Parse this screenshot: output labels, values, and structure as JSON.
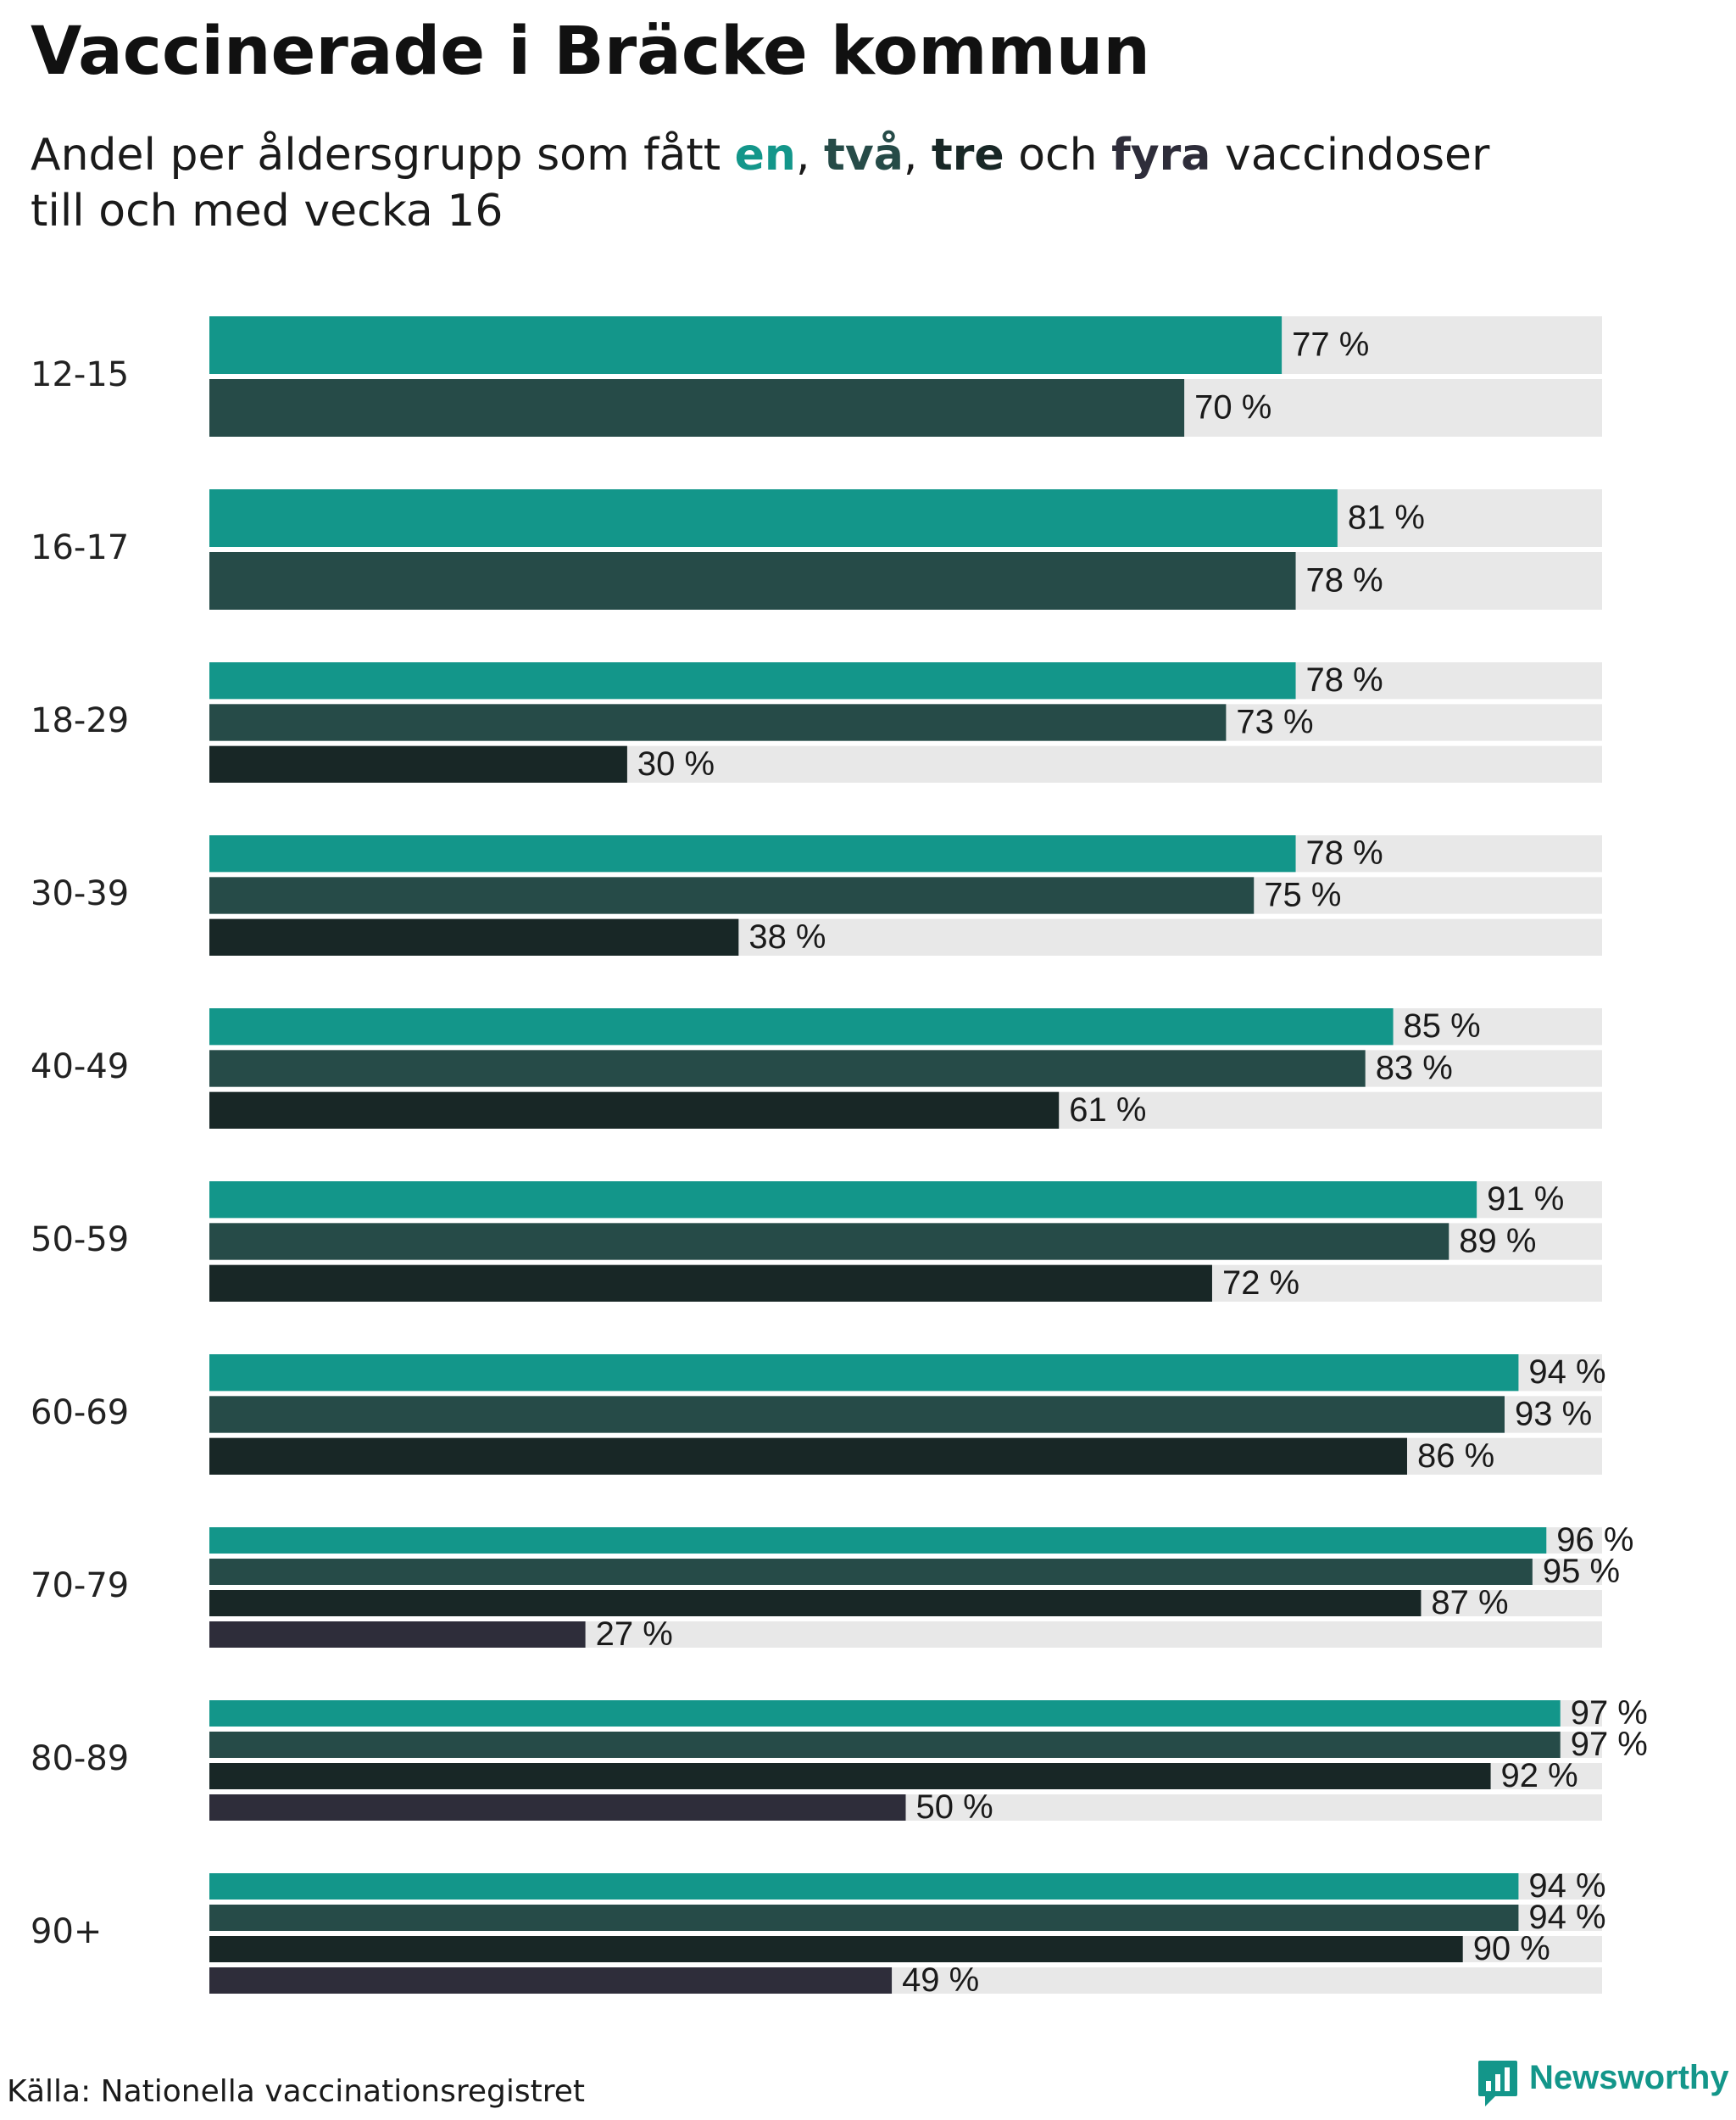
{
  "title": "Vaccinerade i Bräcke kommun",
  "subtitle": {
    "pre": "Andel per åldersgrupp som fått ",
    "dose1": "en",
    "sep1": ", ",
    "dose2": "två",
    "sep2": ", ",
    "dose3": "tre",
    "mid": " och ",
    "dose4": "fyra",
    "post": " vaccindoser",
    "line2": "till och med vecka 16"
  },
  "colors": {
    "dose1": "#13968A",
    "dose2": "#264B48",
    "dose3": "#182726",
    "dose4": "#2E2D3A",
    "background_bar": "#E8E8E8"
  },
  "chart_data": {
    "type": "bar",
    "orientation": "horizontal",
    "title": "Vaccinerade i Bräcke kommun",
    "xlim": [
      0,
      100
    ],
    "grid": false,
    "value_suffix": " %",
    "series_names": [
      "en",
      "två",
      "tre",
      "fyra"
    ],
    "groups": [
      {
        "label": "12-15",
        "values": [
          77,
          70
        ]
      },
      {
        "label": "16-17",
        "values": [
          81,
          78
        ]
      },
      {
        "label": "18-29",
        "values": [
          78,
          73,
          30
        ]
      },
      {
        "label": "30-39",
        "values": [
          78,
          75,
          38
        ]
      },
      {
        "label": "40-49",
        "values": [
          85,
          83,
          61
        ]
      },
      {
        "label": "50-59",
        "values": [
          91,
          89,
          72
        ]
      },
      {
        "label": "60-69",
        "values": [
          94,
          93,
          86
        ]
      },
      {
        "label": "70-79",
        "values": [
          96,
          95,
          87,
          27
        ]
      },
      {
        "label": "80-89",
        "values": [
          97,
          97,
          92,
          50
        ]
      },
      {
        "label": "90+",
        "values": [
          94,
          94,
          90,
          49
        ]
      }
    ]
  },
  "source": "Källa: Nationella vaccinationsregistret",
  "brand": {
    "name": "Newsworthy",
    "color": "#13968A"
  }
}
